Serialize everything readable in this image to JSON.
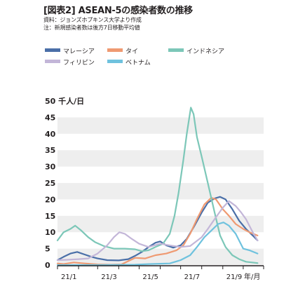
{
  "header": {
    "title": "[図表2] ASEAN-5の感染者数の推移",
    "source": "資料：ジョンズホプキンス大学より作成",
    "note": "注：新規感染者数は後方7日移動平均値"
  },
  "colors": {
    "malaysia": "#4a6fa8",
    "thailand": "#ef9a72",
    "indonesia": "#7cc7b8",
    "philippines": "#c3b6d8",
    "vietnam": "#6fc2de",
    "plot_bg_band": "#eeeeee",
    "axis": "#231f20"
  },
  "chart_data": {
    "type": "line",
    "y_unit_label": "50 千人/日",
    "x_unit_label": "年/月",
    "ylim": [
      0,
      50
    ],
    "yticks": [
      0,
      5,
      10,
      15,
      20,
      25,
      30,
      35,
      40,
      45
    ],
    "xlim": [
      "2021-01-01",
      "2021-10-31"
    ],
    "xticks": [
      {
        "x": "2021-01-01",
        "label": "21/1"
      },
      {
        "x": "2021-03-01",
        "label": "21/3"
      },
      {
        "x": "2021-05-01",
        "label": "21/5"
      },
      {
        "x": "2021-07-01",
        "label": "21/7"
      },
      {
        "x": "2021-09-01",
        "label": "21/9"
      }
    ],
    "legend_position": "top",
    "grid": "alternating horizontal bands",
    "series": [
      {
        "name": "マレーシア",
        "color_key": "malaysia",
        "points": [
          [
            "2021-01-01",
            1.5
          ],
          [
            "2021-01-10",
            2.5
          ],
          [
            "2021-01-20",
            3.5
          ],
          [
            "2021-01-30",
            4.0
          ],
          [
            "2021-02-10",
            3.2
          ],
          [
            "2021-02-20",
            2.5
          ],
          [
            "2021-03-01",
            2.0
          ],
          [
            "2021-03-15",
            1.5
          ],
          [
            "2021-04-01",
            1.4
          ],
          [
            "2021-04-15",
            1.8
          ],
          [
            "2021-04-25",
            2.8
          ],
          [
            "2021-05-05",
            4.0
          ],
          [
            "2021-05-15",
            5.5
          ],
          [
            "2021-05-25",
            6.8
          ],
          [
            "2021-06-01",
            7.2
          ],
          [
            "2021-06-10",
            6.0
          ],
          [
            "2021-06-20",
            5.3
          ],
          [
            "2021-07-01",
            6.0
          ],
          [
            "2021-07-10",
            8.0
          ],
          [
            "2021-07-20",
            11.5
          ],
          [
            "2021-08-01",
            16.0
          ],
          [
            "2021-08-10",
            19.0
          ],
          [
            "2021-08-20",
            20.3
          ],
          [
            "2021-08-28",
            20.8
          ],
          [
            "2021-09-05",
            20.0
          ],
          [
            "2021-09-15",
            17.0
          ],
          [
            "2021-09-25",
            13.5
          ],
          [
            "2021-10-05",
            11.0
          ],
          [
            "2021-10-15",
            9.0
          ],
          [
            "2021-10-22",
            7.5
          ]
        ]
      },
      {
        "name": "タイ",
        "color_key": "thailand",
        "points": [
          [
            "2021-01-01",
            0.5
          ],
          [
            "2021-01-10",
            0.3
          ],
          [
            "2021-01-25",
            0.8
          ],
          [
            "2021-02-10",
            0.5
          ],
          [
            "2021-03-01",
            0.2
          ],
          [
            "2021-03-20",
            0.1
          ],
          [
            "2021-04-05",
            0.2
          ],
          [
            "2021-04-15",
            1.2
          ],
          [
            "2021-04-25",
            2.2
          ],
          [
            "2021-05-10",
            2.0
          ],
          [
            "2021-05-25",
            3.0
          ],
          [
            "2021-06-10",
            3.5
          ],
          [
            "2021-06-25",
            4.5
          ],
          [
            "2021-07-05",
            6.0
          ],
          [
            "2021-07-15",
            9.5
          ],
          [
            "2021-07-25",
            14.0
          ],
          [
            "2021-08-05",
            18.5
          ],
          [
            "2021-08-15",
            20.5
          ],
          [
            "2021-08-22",
            20.0
          ],
          [
            "2021-09-01",
            17.0
          ],
          [
            "2021-09-10",
            15.0
          ],
          [
            "2021-09-20",
            12.5
          ],
          [
            "2021-10-01",
            11.0
          ],
          [
            "2021-10-10",
            10.0
          ],
          [
            "2021-10-22",
            9.0
          ]
        ]
      },
      {
        "name": "インドネシア",
        "color_key": "indonesia",
        "points": [
          [
            "2021-01-01",
            7.5
          ],
          [
            "2021-01-10",
            10.0
          ],
          [
            "2021-01-20",
            11.0
          ],
          [
            "2021-01-27",
            12.0
          ],
          [
            "2021-02-05",
            10.5
          ],
          [
            "2021-02-15",
            8.5
          ],
          [
            "2021-02-25",
            7.0
          ],
          [
            "2021-03-10",
            5.8
          ],
          [
            "2021-03-25",
            5.0
          ],
          [
            "2021-04-10",
            5.0
          ],
          [
            "2021-04-25",
            4.8
          ],
          [
            "2021-05-05",
            4.2
          ],
          [
            "2021-05-15",
            4.5
          ],
          [
            "2021-05-25",
            5.5
          ],
          [
            "2021-06-05",
            6.5
          ],
          [
            "2021-06-15",
            9.5
          ],
          [
            "2021-06-22",
            15.0
          ],
          [
            "2021-06-28",
            22.0
          ],
          [
            "2021-07-05",
            32.0
          ],
          [
            "2021-07-10",
            40.0
          ],
          [
            "2021-07-16",
            48.0
          ],
          [
            "2021-07-20",
            46.0
          ],
          [
            "2021-07-25",
            39.0
          ],
          [
            "2021-08-01",
            33.0
          ],
          [
            "2021-08-10",
            25.0
          ],
          [
            "2021-08-20",
            16.0
          ],
          [
            "2021-08-28",
            9.0
          ],
          [
            "2021-09-05",
            5.5
          ],
          [
            "2021-09-15",
            3.0
          ],
          [
            "2021-09-25",
            1.8
          ],
          [
            "2021-10-05",
            1.0
          ],
          [
            "2021-10-22",
            0.6
          ]
        ]
      },
      {
        "name": "フィリピン",
        "color_key": "philippines",
        "points": [
          [
            "2021-01-01",
            1.5
          ],
          [
            "2021-01-15",
            1.6
          ],
          [
            "2021-02-01",
            1.8
          ],
          [
            "2021-02-15",
            2.0
          ],
          [
            "2021-03-01",
            3.5
          ],
          [
            "2021-03-15",
            6.0
          ],
          [
            "2021-03-25",
            8.5
          ],
          [
            "2021-04-02",
            10.0
          ],
          [
            "2021-04-10",
            9.5
          ],
          [
            "2021-04-20",
            8.0
          ],
          [
            "2021-05-01",
            6.5
          ],
          [
            "2021-05-15",
            5.5
          ],
          [
            "2021-06-01",
            6.5
          ],
          [
            "2021-06-15",
            6.0
          ],
          [
            "2021-07-01",
            5.5
          ],
          [
            "2021-07-15",
            5.8
          ],
          [
            "2021-08-01",
            8.5
          ],
          [
            "2021-08-10",
            11.0
          ],
          [
            "2021-08-20",
            14.0
          ],
          [
            "2021-09-01",
            17.5
          ],
          [
            "2021-09-10",
            19.5
          ],
          [
            "2021-09-20",
            18.0
          ],
          [
            "2021-09-28",
            16.0
          ],
          [
            "2021-10-05",
            14.0
          ],
          [
            "2021-10-15",
            10.0
          ],
          [
            "2021-10-22",
            7.5
          ]
        ]
      },
      {
        "name": "ベトナム",
        "color_key": "vietnam",
        "points": [
          [
            "2021-01-01",
            0
          ],
          [
            "2021-03-01",
            0
          ],
          [
            "2021-04-25",
            0.1
          ],
          [
            "2021-05-15",
            0.3
          ],
          [
            "2021-06-01",
            0.4
          ],
          [
            "2021-06-15",
            0.5
          ],
          [
            "2021-07-01",
            1.5
          ],
          [
            "2021-07-15",
            3.0
          ],
          [
            "2021-07-25",
            5.5
          ],
          [
            "2021-08-05",
            8.5
          ],
          [
            "2021-08-15",
            10.5
          ],
          [
            "2021-08-25",
            12.5
          ],
          [
            "2021-09-02",
            13.0
          ],
          [
            "2021-09-10",
            12.0
          ],
          [
            "2021-09-20",
            9.5
          ],
          [
            "2021-10-01",
            5.0
          ],
          [
            "2021-10-10",
            4.5
          ],
          [
            "2021-10-22",
            3.5
          ]
        ]
      }
    ]
  }
}
